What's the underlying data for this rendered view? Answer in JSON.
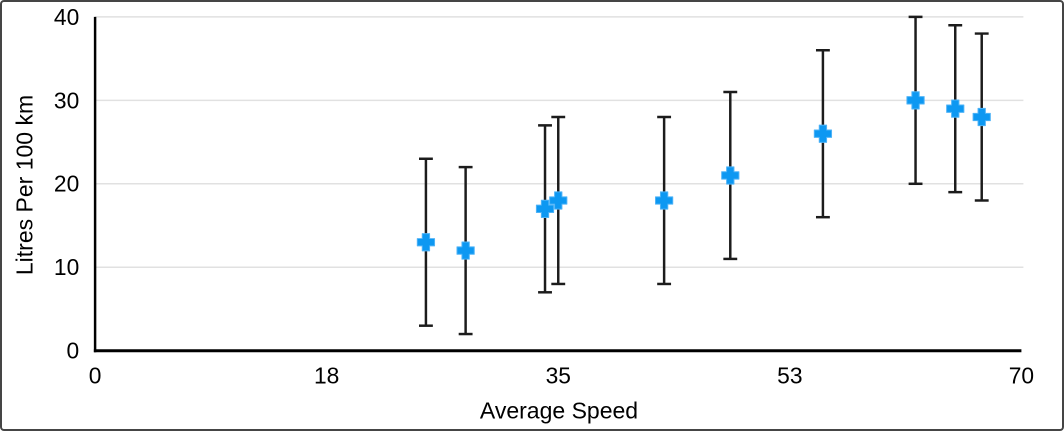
{
  "chart_data": {
    "type": "scatter",
    "title": "",
    "xlabel": "Average Speed",
    "ylabel": "Litres Per 100 km",
    "xlim": [
      0,
      70
    ],
    "ylim": [
      0,
      40
    ],
    "grid": "horizontal-only",
    "legend": "none",
    "x_ticks": [
      {
        "value": 0,
        "label": "0"
      },
      {
        "value": 17.5,
        "label": "18"
      },
      {
        "value": 35,
        "label": "35"
      },
      {
        "value": 52.5,
        "label": "53"
      },
      {
        "value": 70,
        "label": "70"
      }
    ],
    "y_ticks": [
      {
        "value": 0,
        "label": "0"
      },
      {
        "value": 10,
        "label": "10"
      },
      {
        "value": 20,
        "label": "20"
      },
      {
        "value": 30,
        "label": "30"
      },
      {
        "value": 40,
        "label": "40"
      }
    ],
    "series": [
      {
        "name": "Litres Per 100 km",
        "marker": "plus",
        "marker_color": "#0d98f2",
        "marker_edge_color": "#4fb3f7",
        "points": [
          {
            "x": 25,
            "y": 13,
            "err_plus": 10,
            "err_minus": 10
          },
          {
            "x": 28,
            "y": 12,
            "err_plus": 10,
            "err_minus": 10
          },
          {
            "x": 34,
            "y": 17,
            "err_plus": 10,
            "err_minus": 10
          },
          {
            "x": 35,
            "y": 18,
            "err_plus": 10,
            "err_minus": 10
          },
          {
            "x": 43,
            "y": 18,
            "err_plus": 10,
            "err_minus": 10
          },
          {
            "x": 48,
            "y": 21,
            "err_plus": 10,
            "err_minus": 10
          },
          {
            "x": 55,
            "y": 26,
            "err_plus": 10,
            "err_minus": 10
          },
          {
            "x": 62,
            "y": 30,
            "err_plus": 10,
            "err_minus": 10
          },
          {
            "x": 65,
            "y": 29,
            "err_plus": 10,
            "err_minus": 10
          },
          {
            "x": 67,
            "y": 28,
            "err_plus": 10,
            "err_minus": 10
          }
        ]
      }
    ],
    "colors": {
      "error_bar": "#1c1c1c",
      "gridline": "#e1e1e1",
      "axis_line": "#000000",
      "tick_label": "#000000",
      "background": "#ffffff",
      "frame_border": "#454545"
    }
  }
}
